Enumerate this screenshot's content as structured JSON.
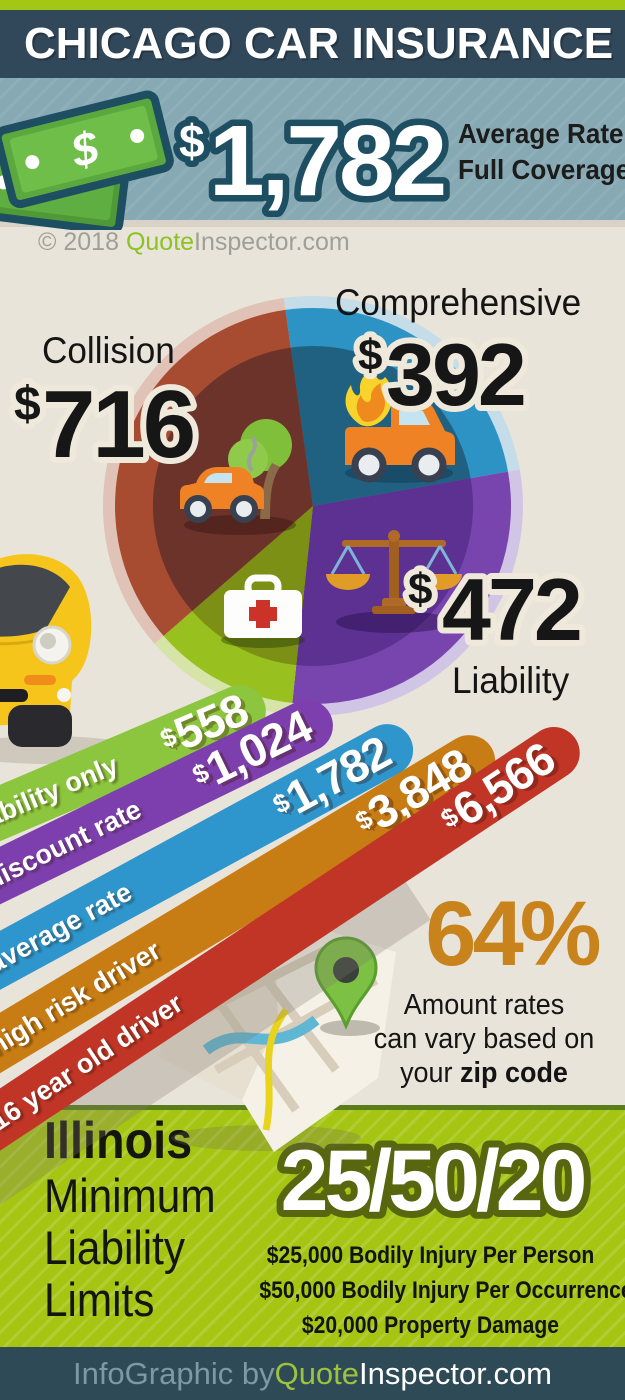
{
  "page": {
    "background": "#e9e4da"
  },
  "header": {
    "title": "CHICAGO CAR INSURANCE",
    "bar_color": "#31485a",
    "strip_color": "#a4c614"
  },
  "hero": {
    "currency": "$",
    "amount": "1,782",
    "label_line1": "Average Rate",
    "label_line2": "Full Coverage",
    "band_color": "#86a9b4",
    "outline_color": "#1d4e61",
    "icon": "money-stack-icon"
  },
  "copyright": {
    "prefix": "© 2018 ",
    "brand_first": "Quote",
    "brand_rest": "Inspector.com"
  },
  "chart_data": [
    {
      "type": "pie",
      "description": "Annual premium breakdown for full coverage",
      "center": [
        313,
        506
      ],
      "slices": [
        {
          "label": "Comprehensive",
          "currency": "$",
          "number": "392",
          "value": 392,
          "color": "#2d93c4",
          "color_dark": "#206181",
          "color_pale": "#c4dde9",
          "start_deg": -8,
          "end_deg": 80,
          "icon": "burning-truck-icon"
        },
        {
          "label": "Liability",
          "currency": "$",
          "number": "472",
          "value": 472,
          "color": "#7844ae",
          "color_dark": "#5c3192",
          "color_pale": "#d1c5e6",
          "start_deg": 80,
          "end_deg": 186,
          "icon": "scales-icon"
        },
        {
          "label": "",
          "value": null,
          "color": "#98c11f",
          "color_dark": "#7b9014",
          "color_pale": "#d6e4a8",
          "start_deg": 186,
          "end_deg": 229,
          "icon": "first-aid-icon",
          "note": "unlabeled green slice"
        },
        {
          "label": "Collision",
          "currency": "$",
          "number": "716",
          "value": 716,
          "color": "#a74b31",
          "color_dark": "#6b332a",
          "color_pale": "#e0c3b6",
          "start_deg": 229,
          "end_deg": 352,
          "icon": "collision-car-icon"
        }
      ]
    },
    {
      "type": "bar",
      "orientation": "diagonal",
      "currency": "$",
      "categories": [
        "liability only",
        "discount rate",
        "average rate",
        "high risk driver",
        "16 year old driver"
      ],
      "values": [
        558,
        1024,
        1782,
        3848,
        6566
      ],
      "numbers": [
        "558",
        "1,024",
        "1,782",
        "3,848",
        "6,566"
      ],
      "colors": [
        "#8cc63e",
        "#7d3fad",
        "#2e96cd",
        "#c77c14",
        "#c13527"
      ]
    }
  ],
  "zip": {
    "percent": "64%",
    "line1": "Amount rates",
    "line2": "can vary based on",
    "line3_normal": "your ",
    "line3_bold": "zip code",
    "accent_color": "#c8831d",
    "icon": "map-pin-icon"
  },
  "limits": {
    "state": "Illinois",
    "line1": "Minimum",
    "line2": "Liability",
    "line3": "Limits",
    "ratio": "25/50/20",
    "detail1": "$25,000 Bodily Injury Per Person",
    "detail2": "$50,000 Bodily Injury Per Occurrence",
    "detail3": "$20,000 Property Damage",
    "band_color": "#a6c513"
  },
  "footer": {
    "prefix": "InfoGraphic by ",
    "brand_first": "Quote",
    "brand_rest": "Inspector.com",
    "bar_color": "#2e4a57"
  },
  "icons": {
    "money-stack-icon": "crossed green dollar bills",
    "burning-truck-icon": "orange truck on fire",
    "collision-car-icon": "orange car crashed into tree",
    "scales-icon": "scales of justice",
    "first-aid-icon": "white first aid kit with red cross",
    "map-pin-icon": "green location pin on folded map",
    "yellow-car-icon": "yellow car front view"
  }
}
